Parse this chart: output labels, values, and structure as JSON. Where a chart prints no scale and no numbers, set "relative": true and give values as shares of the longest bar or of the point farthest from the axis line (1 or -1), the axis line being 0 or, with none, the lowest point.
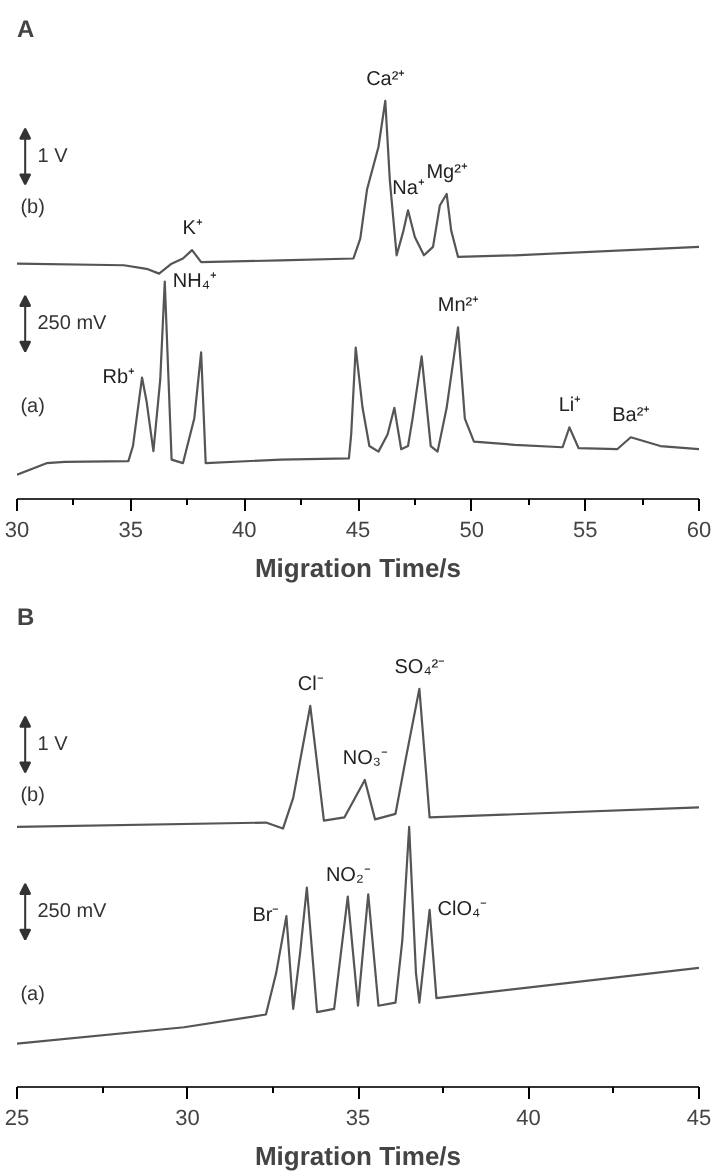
{
  "chart_data": [
    {
      "type": "line",
      "title": "A",
      "xlabel": "Migration Time/s",
      "relative": true,
      "grid": false,
      "xlim": [
        30,
        60
      ],
      "xticks": [
        30,
        {
          "value": 32.5,
          "label": null
        },
        35,
        {
          "value": 37.5,
          "label": null
        },
        40,
        {
          "value": 42.5,
          "label": null
        },
        45,
        {
          "value": 47.5,
          "label": null
        },
        50,
        {
          "value": 52.5,
          "label": null
        },
        55,
        {
          "value": 57.5,
          "label": null
        },
        60
      ],
      "series": [
        {
          "color": "#555555",
          "x": [
            30.0,
            34.7,
            35.7,
            36.25,
            36.8,
            37.3,
            37.7,
            38.1,
            41.6,
            44.8,
            45.1,
            45.4,
            45.9,
            46.2,
            46.4,
            46.7,
            47.0,
            47.2,
            47.5,
            47.9,
            48.3,
            48.6,
            48.9,
            49.1,
            49.4,
            51.9,
            60.0
          ],
          "values": [
            0.591,
            0.587,
            0.578,
            0.566,
            0.591,
            0.604,
            0.625,
            0.595,
            0.599,
            0.604,
            0.654,
            0.778,
            0.884,
            1.0,
            0.8,
            0.612,
            0.674,
            0.725,
            0.658,
            0.612,
            0.633,
            0.737,
            0.766,
            0.674,
            0.608,
            0.612,
            0.633
          ]
        },
        {
          "color": "#555555",
          "x": [
            30.0,
            31.3,
            32.1,
            34.9,
            35.1,
            35.5,
            35.7,
            36.0,
            36.3,
            36.5,
            36.8,
            37.3,
            37.8,
            38.1,
            38.3,
            41.6,
            44.6,
            44.7,
            44.9,
            45.2,
            45.5,
            45.9,
            46.3,
            46.6,
            46.9,
            47.2,
            47.4,
            47.8,
            48.2,
            48.5,
            48.9,
            49.4,
            49.7,
            50.1,
            51.9,
            54.0,
            54.3,
            54.7,
            56.4,
            57.0,
            58.3,
            60.0
          ],
          "values": [
            0.061,
            0.09,
            0.093,
            0.095,
            0.133,
            0.305,
            0.245,
            0.12,
            0.299,
            0.546,
            0.099,
            0.09,
            0.203,
            0.368,
            0.09,
            0.099,
            0.102,
            0.162,
            0.38,
            0.229,
            0.133,
            0.119,
            0.162,
            0.229,
            0.125,
            0.133,
            0.202,
            0.358,
            0.133,
            0.119,
            0.229,
            0.431,
            0.202,
            0.144,
            0.136,
            0.13,
            0.18,
            0.128,
            0.125,
            0.155,
            0.133,
            0.125
          ]
        }
      ],
      "annotations": [
        "1 V",
        "(b)",
        "250 mV",
        "(a)",
        {
          "text": "K⁺",
          "x": 37.7,
          "y": 0.625
        },
        {
          "text": "Ca²⁺",
          "x": 46.2,
          "y": 1.0
        },
        {
          "text": "Na⁺",
          "x": 47.2,
          "y": 0.725
        },
        {
          "text": "Mg²⁺",
          "x": 48.9,
          "y": 0.766
        },
        {
          "text": "Rb⁺",
          "x": 35.5,
          "y": 0.305
        },
        {
          "text": "NH₄⁺",
          "x": 36.5,
          "y": 0.546
        },
        {
          "text": "Mn²⁺",
          "x": 49.4,
          "y": 0.431
        },
        {
          "text": "Li⁺",
          "x": 54.3,
          "y": 0.18
        },
        {
          "text": "Ba²⁺",
          "x": 57.0,
          "y": 0.155
        }
      ]
    },
    {
      "type": "line",
      "title": "B",
      "xlabel": "Migration Time/s",
      "relative": true,
      "grid": false,
      "xlim": [
        25,
        45
      ],
      "xticks": [
        25,
        {
          "value": 27.5,
          "label": null
        },
        30,
        {
          "value": 32.5,
          "label": null
        },
        35,
        {
          "value": 37.5,
          "label": null
        },
        40,
        {
          "value": 42.5,
          "label": null
        },
        45
      ],
      "series": [
        {
          "color": "#555555",
          "x": [
            25.0,
            32.3,
            32.8,
            33.1,
            33.6,
            34.0,
            34.6,
            35.2,
            35.5,
            36.1,
            36.4,
            36.8,
            37.1,
            45.0
          ],
          "values": [
            0.653,
            0.664,
            0.649,
            0.726,
            0.957,
            0.669,
            0.677,
            0.771,
            0.672,
            0.686,
            0.824,
            1.0,
            0.677,
            0.702
          ]
        },
        {
          "color": "#555555",
          "x": [
            25.0,
            29.9,
            32.3,
            32.6,
            32.9,
            33.1,
            33.3,
            33.5,
            33.8,
            34.3,
            34.7,
            35.0,
            35.3,
            35.6,
            36.1,
            36.3,
            36.5,
            36.7,
            36.8,
            37.1,
            37.3,
            45.0
          ],
          "values": [
            0.109,
            0.15,
            0.182,
            0.286,
            0.429,
            0.196,
            0.335,
            0.501,
            0.188,
            0.196,
            0.478,
            0.204,
            0.484,
            0.204,
            0.212,
            0.368,
            0.653,
            0.286,
            0.212,
            0.445,
            0.223,
            0.299
          ]
        }
      ],
      "annotations": [
        "1 V",
        "(b)",
        "250 mV",
        "(a)",
        {
          "text": "Cl⁻",
          "x": 33.6,
          "y": 0.957
        },
        {
          "text": "NO₃⁻",
          "x": 35.2,
          "y": 0.771
        },
        {
          "text": "SO₄²⁻",
          "x": 36.8,
          "y": 1.0
        },
        {
          "text": "Br⁻",
          "x": 32.9,
          "y": 0.429
        },
        {
          "text": "NO₂⁻",
          "x": 34.7,
          "y": 0.478
        },
        {
          "text": "ClO₄⁻",
          "x": 37.1,
          "y": 0.445
        }
      ]
    }
  ]
}
